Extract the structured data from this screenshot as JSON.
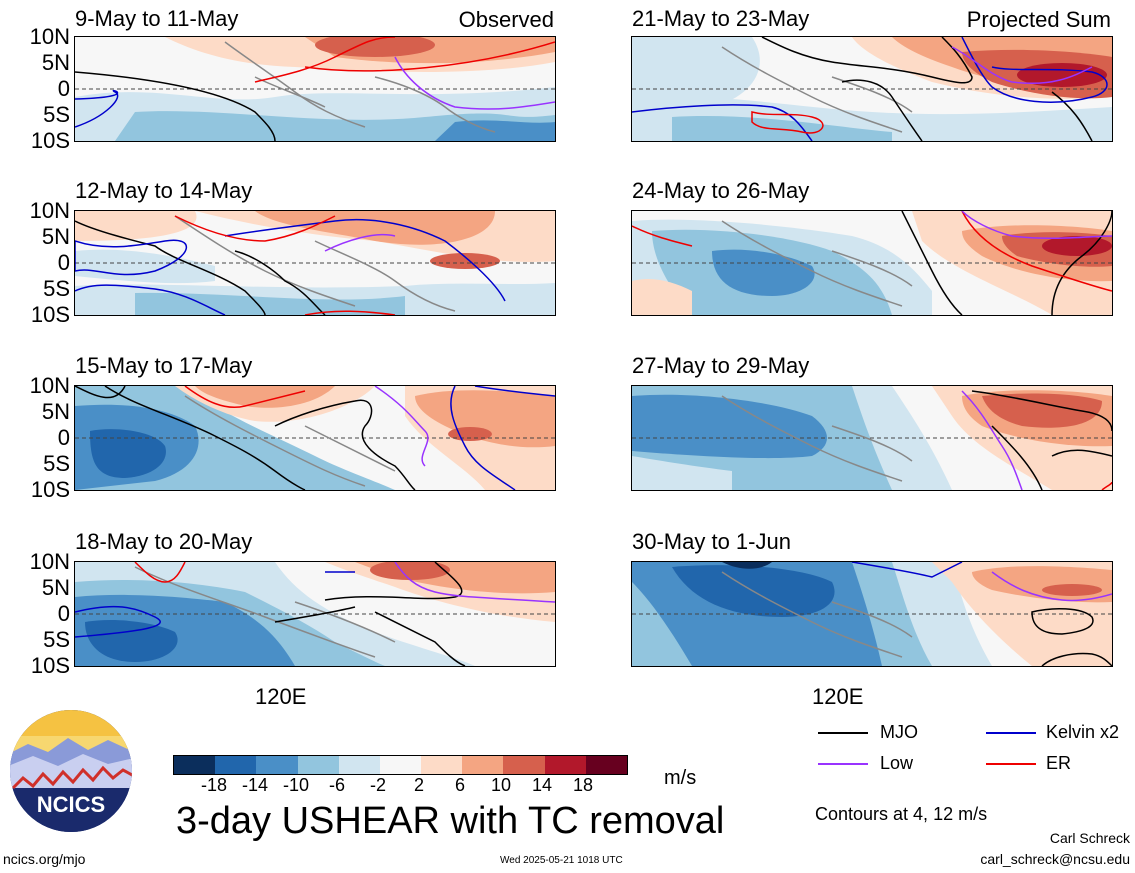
{
  "chart_data": [
    {
      "type": "heatmap",
      "title": "9-May to 11-May",
      "tag": "Observed",
      "ylabels": [
        "10N",
        "5N",
        "0",
        "5S",
        "10S"
      ]
    },
    {
      "type": "heatmap",
      "title": "12-May to 14-May",
      "ylabels": [
        "10N",
        "5N",
        "0",
        "5S",
        "10S"
      ]
    },
    {
      "type": "heatmap",
      "title": "15-May to 17-May",
      "ylabels": [
        "10N",
        "5N",
        "0",
        "5S",
        "10S"
      ]
    },
    {
      "type": "heatmap",
      "title": "18-May to 20-May",
      "ylabels": [
        "10N",
        "5N",
        "0",
        "5S",
        "10S"
      ],
      "xlabel": "120E"
    },
    {
      "type": "heatmap",
      "title": "21-May to 23-May",
      "tag": "Projected Sum",
      "ylabels": []
    },
    {
      "type": "heatmap",
      "title": "24-May to 26-May",
      "ylabels": []
    },
    {
      "type": "heatmap",
      "title": "27-May to 29-May",
      "ylabels": []
    },
    {
      "type": "heatmap",
      "title": "30-May to 1-Jun",
      "ylabels": [],
      "xlabel": "120E"
    }
  ],
  "colorbar": {
    "ticks": [
      "-18",
      "-14",
      "-10",
      "-6",
      "-2",
      "2",
      "6",
      "10",
      "14",
      "18"
    ],
    "unit": "m/s",
    "colors": [
      "#0b2e5c",
      "#2166ac",
      "#4a8fc7",
      "#92c5de",
      "#d1e5f0",
      "#f7f7f7",
      "#fddbc7",
      "#f4a582",
      "#d6604d",
      "#b2182b",
      "#67001f"
    ]
  },
  "legend": {
    "items": [
      {
        "label": "MJO",
        "color": "#000000"
      },
      {
        "label": "Kelvin x2",
        "color": "#0000cc"
      },
      {
        "label": "Low",
        "color": "#9933ff"
      },
      {
        "label": "ER",
        "color": "#ee0000"
      }
    ],
    "contours_note": "Contours at 4, 12 m/s"
  },
  "logo": {
    "text": "NCICS"
  },
  "main_title": "3-day USHEAR with TC removal",
  "footer": {
    "url": "ncics.org/mjo",
    "timestamp": "Wed 2025-05-21 1018 UTC",
    "author": "Carl Schreck",
    "email": "carl_schreck@ncsu.edu"
  }
}
